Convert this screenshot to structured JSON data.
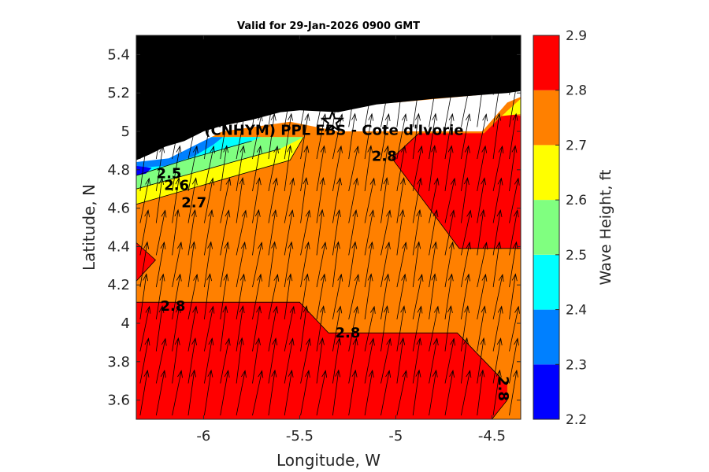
{
  "chart_data": {
    "type": "heatmap",
    "title": "Valid for 29-Jan-2026 0900 GMT",
    "xlabel": "Longitude, W",
    "ylabel": "Latitude, N",
    "xlim": [
      -6.35,
      -4.35
    ],
    "ylim": [
      3.5,
      5.5
    ],
    "x_ticks": [
      -6,
      -5.5,
      -5,
      -4.5
    ],
    "x_tick_labels": [
      "-6",
      "-5.5",
      "-5",
      "-4.5"
    ],
    "y_ticks": [
      3.6,
      3.8,
      4.0,
      4.2,
      4.4,
      4.6,
      4.8,
      5.0,
      5.2,
      5.4
    ],
    "y_tick_labels": [
      "3.6",
      "3.8",
      "4",
      "4.2",
      "4.4",
      "4.6",
      "4.8",
      "5",
      "5.2",
      "5.4"
    ],
    "colorbar": {
      "label": "Wave Height, ft",
      "ticks": [
        2.2,
        2.3,
        2.4,
        2.5,
        2.6,
        2.7,
        2.8,
        2.9
      ],
      "tick_labels": [
        "2.2",
        "2.3",
        "2.4",
        "2.5",
        "2.6",
        "2.7",
        "2.8",
        "2.9"
      ],
      "bands": [
        {
          "from": 2.2,
          "to": 2.3,
          "color": "#0000ff"
        },
        {
          "from": 2.3,
          "to": 2.4,
          "color": "#0080ff"
        },
        {
          "from": 2.4,
          "to": 2.5,
          "color": "#00ffff"
        },
        {
          "from": 2.5,
          "to": 2.6,
          "color": "#80ff80"
        },
        {
          "from": 2.6,
          "to": 2.7,
          "color": "#ffff00"
        },
        {
          "from": 2.7,
          "to": 2.8,
          "color": "#ff8000"
        },
        {
          "from": 2.8,
          "to": 2.9,
          "color": "#ff0000"
        }
      ]
    },
    "contour_labels": [
      {
        "text": "2.5",
        "lon": -6.18,
        "lat": 4.78
      },
      {
        "text": "2.6",
        "lon": -6.14,
        "lat": 4.72
      },
      {
        "text": "2.7",
        "lon": -6.05,
        "lat": 4.63
      },
      {
        "text": "2.8",
        "lon": -5.06,
        "lat": 4.87
      },
      {
        "text": "2.8",
        "lon": -6.16,
        "lat": 4.09
      },
      {
        "text": "2.8",
        "lon": -5.25,
        "lat": 3.95
      },
      {
        "text": "2.8",
        "lon": -4.44,
        "lat": 3.66
      }
    ],
    "site": {
      "name": "(CNHYM) PPL EBS  - Cote d'Ivorie",
      "lon": -5.33,
      "lat": 5.05
    },
    "land_color": "#000000",
    "vectors": "wave direction arrows pointing north-northeast"
  }
}
